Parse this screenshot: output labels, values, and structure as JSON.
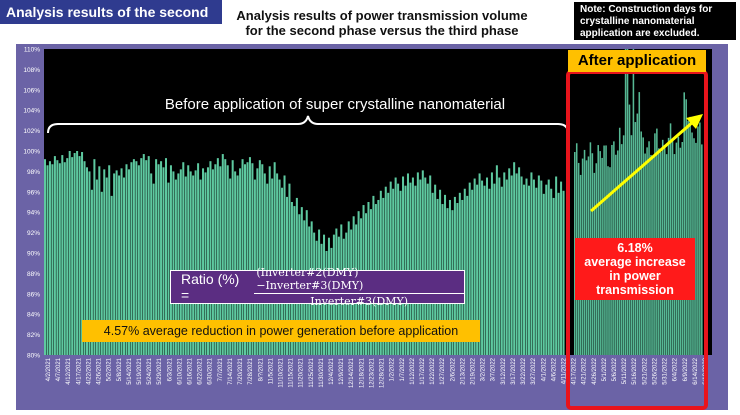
{
  "header": {
    "phase_tag": "Analysis results of the second phase",
    "title_line1": "Analysis results of power transmission volume",
    "title_line2": "for the second phase versus the third phase",
    "note_line1": "Note: Construction days for",
    "note_line2": "crystalline nanomaterial",
    "note_line3": "application are excluded."
  },
  "annotations": {
    "before_label": "Before application of super crystalline nanomaterial",
    "after_label": "After application",
    "increase_line1": "6.18%",
    "increase_line2": "average increase",
    "increase_line3": "in power",
    "increase_line4": "transmission",
    "formula_label": "Ratio (%) =",
    "formula_numerator": "(Inverter#2(DMY)−Inverter#3(DMY)",
    "formula_denominator": "Inverter#3(DMY)",
    "reduction_text": "4.57% average reduction in power generation before application"
  },
  "colors": {
    "bar": "#5ec9a0",
    "bar_after": "#56b894",
    "plot_bg": "#000000",
    "frame_bg": "#6b63a6",
    "after_frame": "#e8141c",
    "trend_arrow": "#ffff00",
    "phase_tag_bg": "#2f3b8f",
    "highlight_yellow": "#ffc000",
    "highlight_red": "#ff1a1a"
  },
  "chart_data": {
    "type": "bar",
    "ylim": [
      80,
      110
    ],
    "y_ticks": [
      "80%",
      "82%",
      "84%",
      "86%",
      "88%",
      "90%",
      "92%",
      "94%",
      "96%",
      "98%",
      "100%",
      "102%",
      "104%",
      "106%",
      "108%",
      "110%"
    ],
    "x_tick_labels": [
      "4/2/2021",
      "4/7/2021",
      "4/12/2021",
      "4/17/2021",
      "4/22/2021",
      "4/26/2021",
      "5/2/2021",
      "5/8/2021",
      "5/14/2021",
      "5/19/2021",
      "5/24/2021",
      "5/29/2021",
      "6/3/2021",
      "6/10/2021",
      "6/16/2021",
      "6/22/2021",
      "6/30/2021",
      "7/7/2021",
      "7/14/2021",
      "7/20/2021",
      "7/28/2021",
      "8/?/2021",
      "11/5/2021",
      "11/10/2021",
      "11/15/2021",
      "11/20/2021",
      "11/25/2021",
      "11/30/2021",
      "12/4/2021",
      "12/9/2021",
      "12/14/2021",
      "12/18/2021",
      "12/23/2021",
      "12/28/2021",
      "1/2/2022",
      "1/7/2022",
      "1/12/2022",
      "1/17/2022",
      "1/22/2022",
      "1/27/2022",
      "2/6/2022",
      "2/13/2022",
      "2/19/2022",
      "3/2/2022",
      "3/7/2022",
      "3/12/2022",
      "3/17/2022",
      "3/22/2022",
      "3/27/2022",
      "4/1/2022",
      "4/6/2022",
      "4/11/2022",
      "4/17/2022",
      "4/21/2022",
      "4/26/2022",
      "5/1/2022",
      "5/6/2022",
      "5/11/2022",
      "5/16/2022",
      "5/21/2022",
      "5/26/2022",
      "5/31/2022",
      "6/4/2022",
      "6/9/2022",
      "6/14/2022",
      "6/19/2022"
    ],
    "before_values": [
      99.2,
      98.6,
      99.0,
      98.7,
      99.5,
      99.1,
      98.8,
      99.6,
      98.9,
      99.3,
      100.0,
      99.4,
      99.8,
      100.0,
      99.5,
      99.9,
      99.0,
      98.4,
      98.0,
      96.2,
      99.2,
      97.2,
      98.5,
      96.0,
      98.2,
      97.4,
      98.6,
      95.6,
      97.8,
      98.1,
      97.6,
      98.3,
      97.4,
      98.7,
      98.2,
      98.9,
      99.2,
      99.0,
      98.6,
      99.3,
      99.7,
      99.1,
      99.5,
      97.8,
      96.8,
      99.2,
      98.7,
      99.0,
      98.4,
      99.3,
      96.9,
      98.6,
      98.0,
      97.2,
      97.8,
      98.2,
      98.9,
      97.5,
      98.6,
      98.0,
      97.6,
      98.1,
      98.8,
      97.2,
      98.3,
      97.9,
      98.4,
      99.0,
      98.2,
      98.7,
      99.3,
      98.5,
      99.7,
      99.2,
      98.6,
      97.3,
      99.1,
      98.0,
      97.6,
      98.3,
      99.2,
      98.7,
      98.9,
      99.4,
      98.8,
      97.2,
      98.3,
      99.1,
      98.7,
      97.8,
      96.8,
      98.5,
      97.3,
      98.9,
      97.8,
      97.2,
      96.4,
      97.6,
      95.5,
      96.8,
      95.0,
      94.6,
      95.4,
      93.8,
      94.5,
      93.2,
      94.2,
      92.6,
      93.1,
      92.0,
      91.2,
      92.3,
      90.9,
      91.8,
      90.2,
      91.5,
      90.5,
      91.8,
      92.4,
      91.6,
      92.8,
      91.4,
      92.0,
      93.1,
      92.3,
      93.6,
      92.8,
      94.1,
      93.4,
      94.7,
      93.9,
      95.0,
      94.3,
      95.6,
      94.8,
      95.2,
      96.1,
      95.4,
      96.5,
      95.9,
      97.0,
      96.3,
      97.4,
      96.8,
      96.1,
      97.5,
      96.6,
      97.8,
      96.9,
      97.4,
      96.6,
      97.9,
      97.2,
      98.1,
      97.4,
      96.8,
      97.6,
      95.9,
      96.7,
      95.3,
      96.2,
      94.8,
      95.7,
      94.4,
      95.2,
      94.2,
      95.5,
      94.9,
      95.9,
      95.2,
      96.3,
      95.6,
      96.9,
      96.2,
      97.3,
      96.7,
      97.8,
      97.1,
      96.6,
      97.4,
      96.3,
      97.9,
      96.8,
      98.6,
      97.4,
      96.5,
      97.9,
      97.2,
      98.3,
      97.6,
      98.9,
      97.8,
      98.4,
      97.5,
      96.7,
      97.3,
      96.6,
      97.9,
      97.2,
      96.4,
      97.6,
      97.1,
      95.8,
      96.7,
      97.2,
      96.3,
      95.4,
      97.5,
      95.9,
      97.0,
      96.1
    ]
  }
}
